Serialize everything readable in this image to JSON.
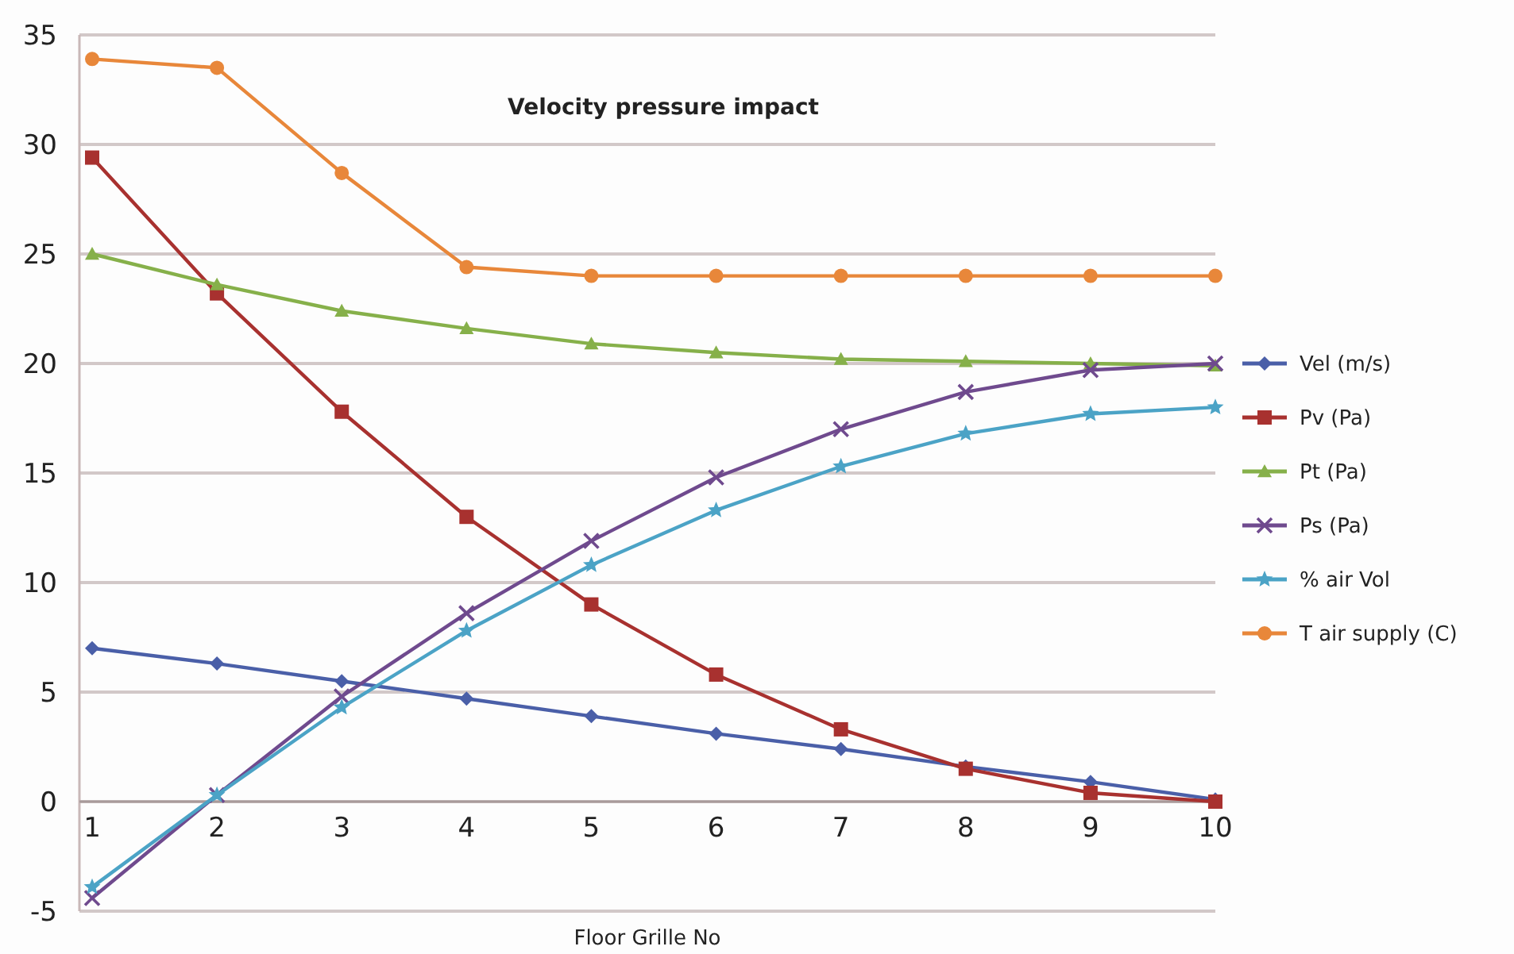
{
  "chart_data": {
    "type": "line",
    "title": "Velocity pressure impact",
    "xlabel": "Floor Grille No",
    "categories": [
      "1",
      "2",
      "3",
      "4",
      "5",
      "6",
      "7",
      "8",
      "9",
      "10"
    ],
    "ylim": [
      -5,
      35
    ],
    "yticks": [
      -5,
      0,
      5,
      10,
      15,
      20,
      25,
      30,
      35
    ],
    "grid": "y",
    "legend": "right",
    "series": [
      {
        "name": "Vel (m/s)",
        "color": "#4a5fa8",
        "marker": "diamond",
        "values": [
          7.0,
          6.3,
          5.5,
          4.7,
          3.9,
          3.1,
          2.4,
          1.6,
          0.9,
          0.1
        ]
      },
      {
        "name": "Pv (Pa)",
        "color": "#a8312f",
        "marker": "square",
        "values": [
          29.4,
          23.2,
          17.8,
          13.0,
          9.0,
          5.8,
          3.3,
          1.5,
          0.4,
          0.0
        ]
      },
      {
        "name": "Pt (Pa)",
        "color": "#86b04a",
        "marker": "triangle",
        "values": [
          25.0,
          23.6,
          22.4,
          21.6,
          20.9,
          20.5,
          20.2,
          20.1,
          20.0,
          19.9
        ]
      },
      {
        "name": "Ps (Pa)",
        "color": "#6f4a8e",
        "marker": "cross",
        "values": [
          -4.4,
          0.3,
          4.8,
          8.6,
          11.9,
          14.8,
          17.0,
          18.7,
          19.7,
          20.0
        ]
      },
      {
        "name": "% air Vol",
        "color": "#4ba3c6",
        "marker": "star",
        "values": [
          -3.9,
          0.3,
          4.3,
          7.8,
          10.8,
          13.3,
          15.3,
          16.8,
          17.7,
          18.0
        ]
      },
      {
        "name": "T air supply (C)",
        "color": "#e8873a",
        "marker": "circle",
        "values": [
          33.9,
          33.5,
          28.7,
          24.4,
          24.0,
          24.0,
          24.0,
          24.0,
          24.0,
          24.0
        ]
      }
    ]
  }
}
